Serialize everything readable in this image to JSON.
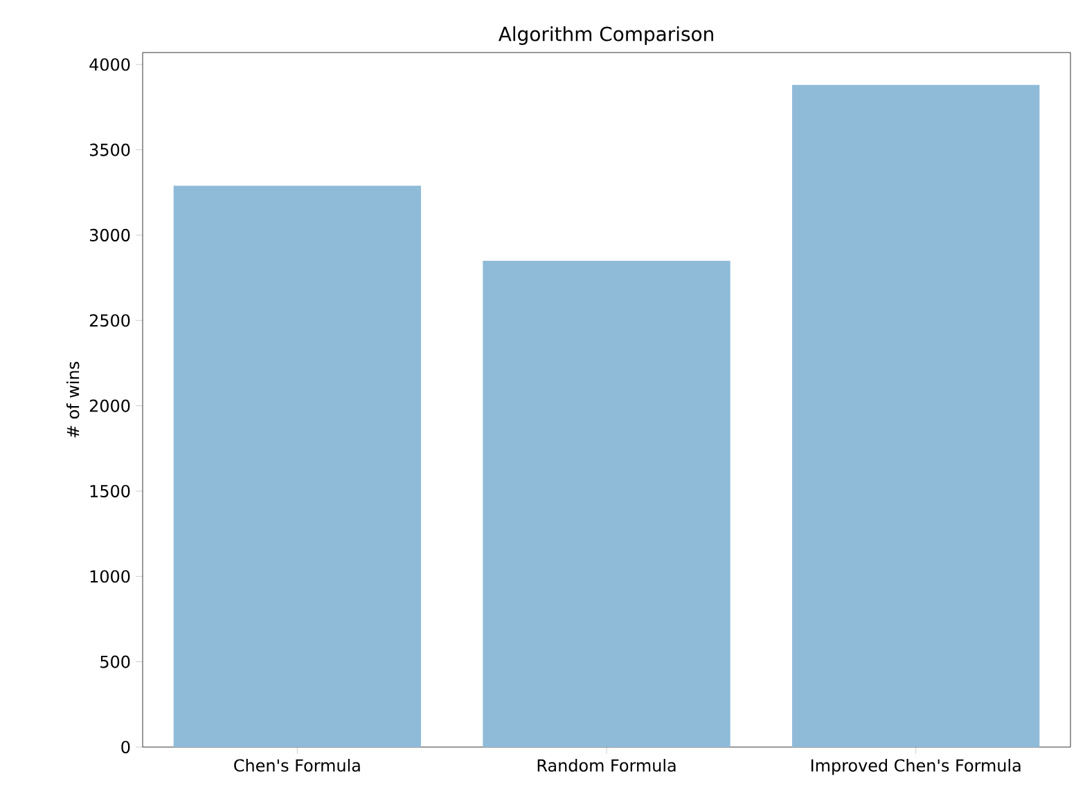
{
  "chart_data": {
    "type": "bar",
    "title": "Algorithm Comparison",
    "ylabel": "# of wins",
    "categories": [
      "Chen's Formula",
      "Random Formula",
      "Improved Chen's Formula"
    ],
    "values": [
      3290,
      2850,
      3880
    ],
    "color": "#8fbbd9",
    "ylim": [
      0,
      4070
    ],
    "yticks": [
      0,
      500,
      1000,
      1500,
      2000,
      2500,
      3000,
      3500,
      4000
    ]
  }
}
